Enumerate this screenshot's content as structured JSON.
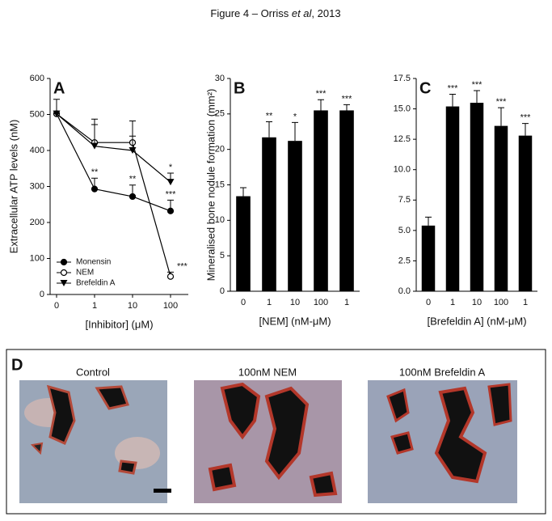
{
  "figure_title": [
    "Figure 4 – Orriss ",
    "et al",
    ", 2013"
  ],
  "panel_d": {
    "label": "D",
    "captions": [
      "Control",
      "100nM NEM",
      "100nM Brefeldin A"
    ]
  },
  "chart_data": [
    {
      "type": "line",
      "panel_label": "A",
      "x_label": "[Inhibitor] (μM)",
      "y_label": "Extracellular ATP levels (nM)",
      "categories": [
        "0",
        "1",
        "10",
        "100"
      ],
      "ylim": [
        0,
        600
      ],
      "yticks": [
        0,
        100,
        200,
        300,
        400,
        500,
        600
      ],
      "legend": "lower left",
      "series": [
        {
          "name": "Monensin",
          "color": "#000000",
          "marker": "circle",
          "values": [
            502,
            293,
            272,
            232
          ],
          "errors": [
            40,
            30,
            32,
            30
          ],
          "annotations": [
            null,
            "**",
            "**",
            "***"
          ]
        },
        {
          "name": "NEM",
          "color": "#000000",
          "marker": "open-circle",
          "values": [
            502,
            422,
            422,
            50
          ],
          "errors": [
            0,
            50,
            60,
            12
          ],
          "annotations": [
            null,
            null,
            null,
            "***"
          ]
        },
        {
          "name": "Brefeldin A",
          "color": "#000000",
          "marker": "triangle-down",
          "values": [
            502,
            412,
            400,
            312
          ],
          "errors": [
            0,
            75,
            40,
            25
          ],
          "annotations": [
            null,
            null,
            null,
            "*"
          ]
        }
      ]
    },
    {
      "type": "bar",
      "panel_label": "B",
      "x_label": "[NEM] (nM-μM)",
      "y_label": "Mineralised bone nodule formation (mm²)",
      "categories": [
        "0",
        "1",
        "10",
        "100",
        "1"
      ],
      "ylim": [
        0,
        30
      ],
      "yticks": [
        0,
        5,
        10,
        15,
        20,
        25,
        30
      ],
      "color": "#000000",
      "values": [
        13.4,
        21.7,
        21.2,
        25.5,
        25.5
      ],
      "errors": [
        1.2,
        2.2,
        2.6,
        1.5,
        0.8
      ],
      "annotations": [
        null,
        "**",
        "*",
        "***",
        "***"
      ]
    },
    {
      "type": "bar",
      "panel_label": "C",
      "x_label": "[Brefeldin A] (nM-μM)",
      "categories": [
        "0",
        "1",
        "10",
        "100",
        "1"
      ],
      "ylim": [
        0,
        17.5
      ],
      "yticks": [
        {
          "value": 0,
          "label": "0.0"
        },
        2.5,
        {
          "value": 5,
          "label": "5.0"
        },
        7.5,
        {
          "value": 10,
          "label": "10.0"
        },
        12.5,
        {
          "value": 15,
          "label": "15.0"
        },
        17.5
      ],
      "color": "#000000",
      "values": [
        5.4,
        15.2,
        15.5,
        13.6,
        12.8
      ],
      "errors": [
        0.7,
        1.0,
        1.0,
        1.5,
        1.0
      ],
      "annotations": [
        null,
        "***",
        "***",
        "***",
        "***"
      ]
    }
  ]
}
